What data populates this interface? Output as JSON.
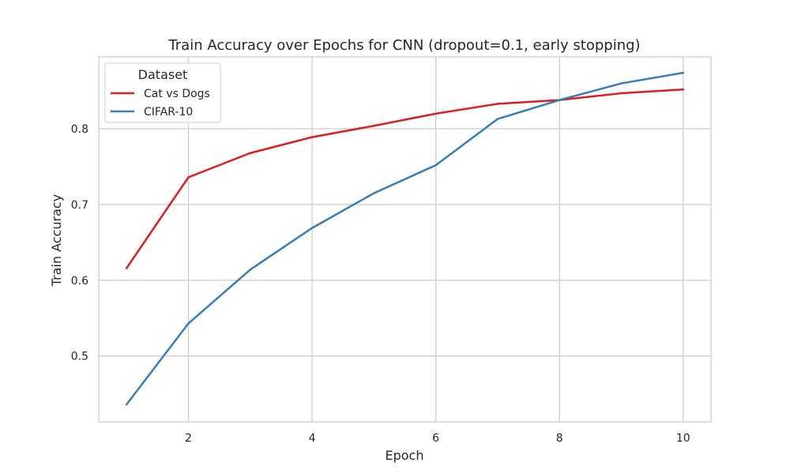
{
  "chart_data": {
    "type": "line",
    "title": "Train Accuracy over Epochs for CNN (dropout=0.1, early stopping)",
    "xlabel": "Epoch",
    "ylabel": "Train Accuracy",
    "x": [
      1,
      2,
      3,
      4,
      5,
      6,
      7,
      8,
      9,
      10
    ],
    "xlim": [
      0.55,
      10.45
    ],
    "ylim": [
      0.413,
      0.895
    ],
    "xticks": [
      2,
      4,
      6,
      8,
      10
    ],
    "yticks": [
      0.5,
      0.6,
      0.7,
      0.8
    ],
    "xtick_labels": [
      "2",
      "4",
      "6",
      "8",
      "10"
    ],
    "ytick_labels": [
      "0.5",
      "0.6",
      "0.7",
      "0.8"
    ],
    "grid": true,
    "legend": {
      "title": "Dataset",
      "placement": "top-left"
    },
    "series": [
      {
        "name": "Cat vs Dogs",
        "color": "#e41a1c",
        "values": [
          0.616,
          0.736,
          0.768,
          0.789,
          0.804,
          0.82,
          0.833,
          0.838,
          0.847,
          0.852
        ]
      },
      {
        "name": "CIFAR-10",
        "color": "#377eb8",
        "values": [
          0.436,
          0.543,
          0.614,
          0.669,
          0.715,
          0.752,
          0.813,
          0.838,
          0.86,
          0.874
        ]
      }
    ]
  }
}
